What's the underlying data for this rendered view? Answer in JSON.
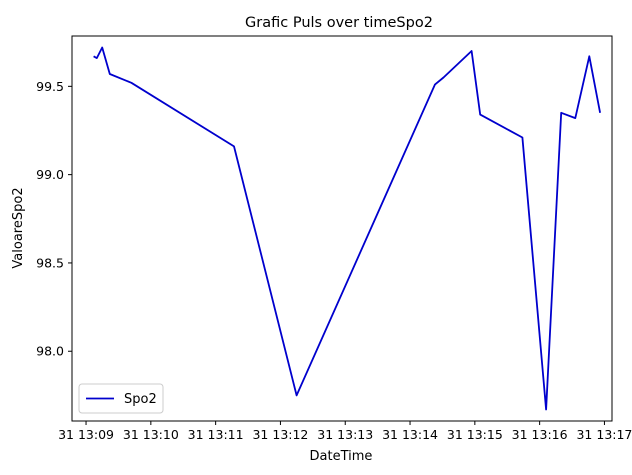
{
  "chart_data": {
    "type": "line",
    "title": "Grafic Puls over timeSpo2",
    "xlabel": "DateTime",
    "ylabel": "ValoareSpo2",
    "x_unit": "time of day (HH:MM:SS)",
    "xlim": [
      "13:08:47",
      "13:17:07"
    ],
    "ylim": [
      97.605,
      99.785
    ],
    "x_ticks": [
      "13:09",
      "13:10",
      "13:11",
      "13:12",
      "13:13",
      "13:14",
      "13:15",
      "13:16",
      "13:17"
    ],
    "x_tick_labels": [
      "31 13:09",
      "31 13:10",
      "31 13:11",
      "31 13:12",
      "31 13:13",
      "31 13:14",
      "31 13:15",
      "31 13:16",
      "31 13:17"
    ],
    "y_ticks": [
      98.0,
      98.5,
      99.0,
      99.5
    ],
    "y_tick_labels": [
      "98.0",
      "98.5",
      "99.0",
      "99.5"
    ],
    "grid": false,
    "legend_position": "lower-left",
    "series": [
      {
        "name": "Spo2",
        "color": "#0000cd",
        "x": [
          "13:09:07",
          "13:09:10",
          "13:09:15",
          "13:09:22",
          "13:09:42",
          "13:11:17",
          "13:12:15",
          "13:14:23",
          "13:14:31",
          "13:14:57",
          "13:15:05",
          "13:15:44",
          "13:16:06",
          "13:16:20",
          "13:16:33",
          "13:16:46",
          "13:16:56"
        ],
        "values": [
          99.67,
          99.66,
          99.72,
          99.57,
          99.52,
          99.16,
          97.75,
          99.51,
          99.55,
          99.7,
          99.34,
          99.21,
          97.67,
          99.35,
          99.32,
          99.67,
          99.35
        ]
      }
    ]
  }
}
